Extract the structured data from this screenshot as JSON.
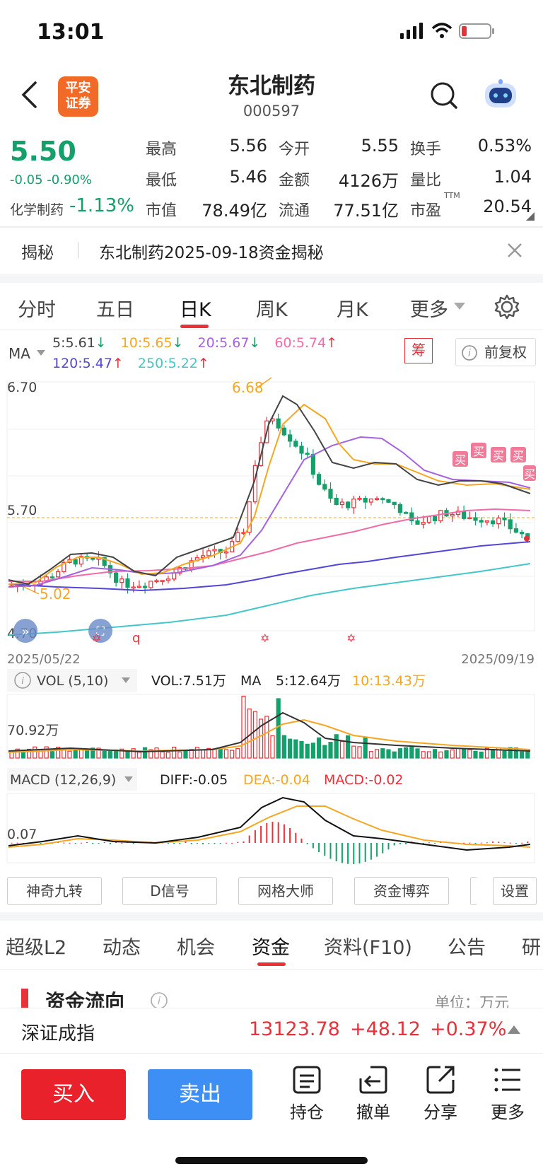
{
  "status_bar": {
    "time": "13:01"
  },
  "header": {
    "logo_line1": "平安",
    "logo_line2": "证券",
    "title": "东北制药",
    "code": "000597"
  },
  "quote": {
    "price": "5.50",
    "change": "-0.05 -0.90%",
    "sector_label": "化学制药",
    "sector_change": "-1.13%",
    "fields": [
      {
        "label": "最高",
        "value": "5.56"
      },
      {
        "label": "今开",
        "value": "5.55"
      },
      {
        "label": "换手",
        "value": "0.53%"
      },
      {
        "label": "最低",
        "value": "5.46"
      },
      {
        "label": "金额",
        "value": "4126万"
      },
      {
        "label": "量比",
        "value": "1.04"
      },
      {
        "label": "市值",
        "value": "78.49亿"
      },
      {
        "label": "流通",
        "value": "77.51亿"
      },
      {
        "label": "市盈",
        "value": "20.54"
      }
    ],
    "pe_suffix": "TTM"
  },
  "notice": {
    "tag": "揭秘",
    "text": "东北制药2025-09-18资金揭秘"
  },
  "period_tabs": [
    "分时",
    "五日",
    "日K",
    "周K",
    "月K",
    "更多"
  ],
  "ma_legend": {
    "label": "MA",
    "items": [
      {
        "text": "5:5.61",
        "trend": "↓",
        "color": "#444444"
      },
      {
        "text": "10:5.65",
        "trend": "↓",
        "color": "#f5a623"
      },
      {
        "text": "20:5.67",
        "trend": "↓",
        "color": "#a463e0"
      },
      {
        "text": "60:5.74",
        "trend": "↑",
        "color": "#f06ca8"
      },
      {
        "text": "120:5.47",
        "trend": "↑",
        "color": "#5247d6"
      },
      {
        "text": "250:5.22",
        "trend": "↑",
        "color": "#43c7c9"
      }
    ],
    "chip_label": "筹",
    "adjust_label": "前复权"
  },
  "kline": {
    "y_labels": [
      "6.70",
      "5.70",
      "4.70"
    ],
    "max_label": "6.68",
    "min_label": "5.02",
    "start_date": "2025/05/22",
    "end_date": "2025/09/19",
    "buy_marker": "买",
    "bottom_marker": "q"
  },
  "volume": {
    "label": "VOL (5,10)",
    "vol": "VOL:7.51万",
    "ma_label": "MA",
    "ma5": "5:12.64万",
    "ma10": "10:13.43万",
    "axis_label": "70.92万"
  },
  "macd": {
    "label": "MACD (12,26,9)",
    "diff": "DIFF:-0.05",
    "dea": "DEA:-0.04",
    "macd": "MACD:-0.02",
    "axis_label": "0.07"
  },
  "indicator_buttons": [
    "神奇九转",
    "D信号",
    "网格大师",
    "资金博弈",
    "设置"
  ],
  "bottom_tabs": [
    "超级L2",
    "动态",
    "机会",
    "资金",
    "资料(F10)",
    "公告",
    "研"
  ],
  "flow": {
    "title": "资金流向",
    "unit": "单位：万元"
  },
  "index_bar": {
    "name": "深证成指",
    "value": "13123.78",
    "change": "+48.12",
    "percent": "+0.37%"
  },
  "actions": {
    "buy": "买入",
    "sell": "卖出",
    "items": [
      "持仓",
      "撤单",
      "分享",
      "更多"
    ]
  }
}
